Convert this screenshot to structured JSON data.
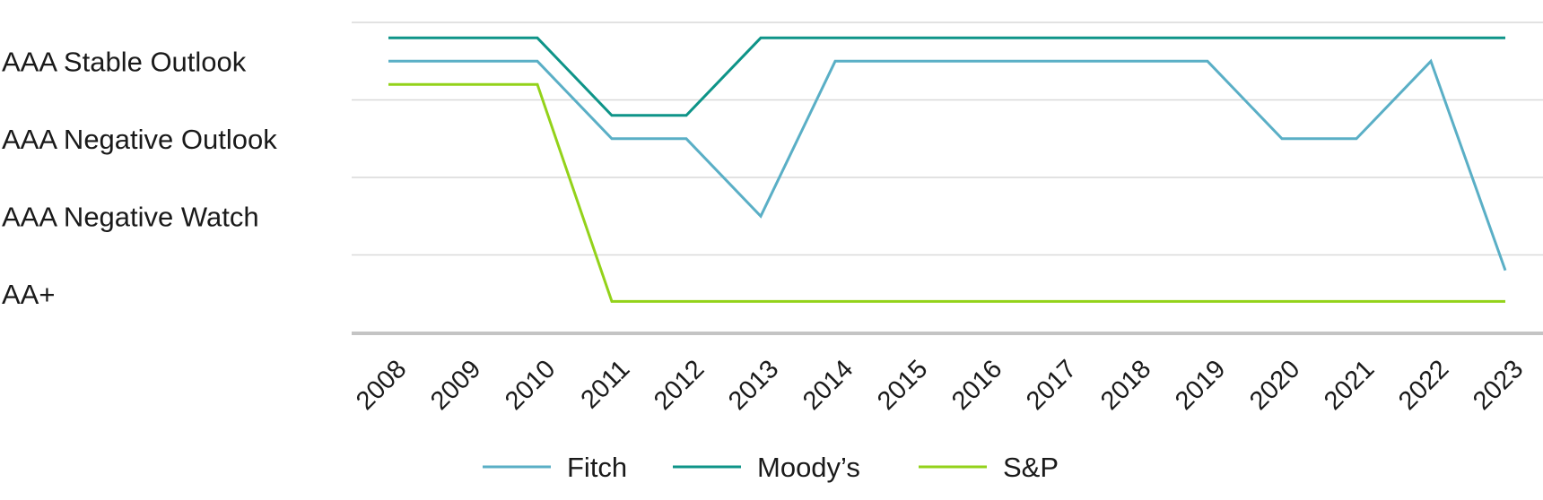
{
  "chart_data": {
    "type": "line",
    "title": "",
    "xlabel": "",
    "ylabel": "",
    "x": [
      "2008",
      "2009",
      "2010",
      "2011",
      "2012",
      "2013",
      "2014",
      "2015",
      "2016",
      "2017",
      "2018",
      "2019",
      "2020",
      "2021",
      "2022",
      "2023"
    ],
    "y_categories": [
      "AA+",
      "AAA Negative Watch",
      "AAA Negative Outlook",
      "AAA Stable Outlook"
    ],
    "ylim": [
      0,
      4
    ],
    "grid": true,
    "legend_position": "bottom",
    "series": [
      {
        "name": "Fitch",
        "color": "#5aafc6",
        "values": [
          3,
          3,
          3,
          2,
          2,
          1,
          3,
          3,
          3,
          3,
          3,
          3,
          2,
          2,
          3,
          0.3
        ]
      },
      {
        "name": "Moody’s",
        "color": "#0e9488",
        "values": [
          3.3,
          3.3,
          3.3,
          2.3,
          2.3,
          3.3,
          3.3,
          3.3,
          3.3,
          3.3,
          3.3,
          3.3,
          3.3,
          3.3,
          3.3,
          3.3
        ]
      },
      {
        "name": "S&P",
        "color": "#93d21a",
        "values": [
          2.7,
          2.7,
          2.7,
          -0.1,
          -0.1,
          -0.1,
          -0.1,
          -0.1,
          -0.1,
          -0.1,
          -0.1,
          -0.1,
          -0.1,
          -0.1,
          -0.1,
          -0.1
        ]
      }
    ]
  }
}
